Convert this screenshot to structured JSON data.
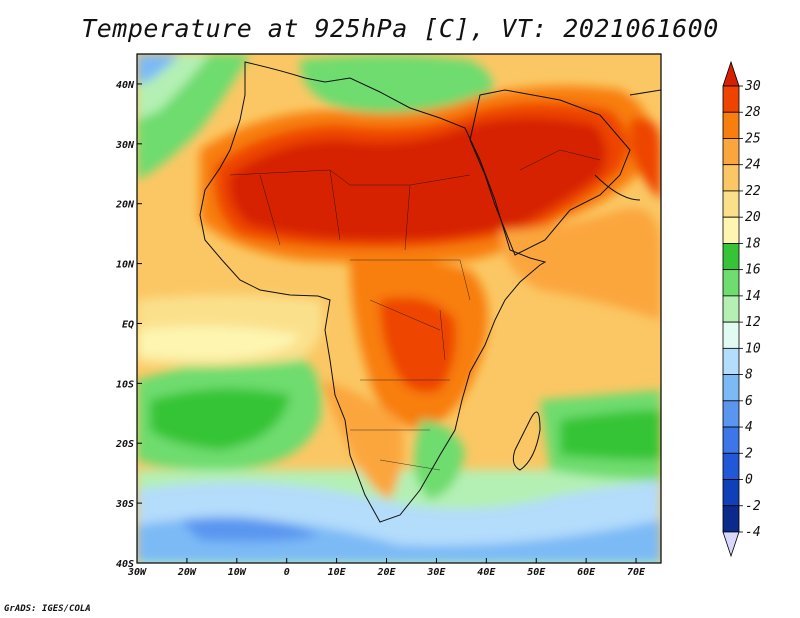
{
  "title": "Temperature at 925hPa [C], VT: 2021061600",
  "credit": "GrADS: IGES/COLA",
  "map": {
    "lon_labels": [
      "30W",
      "20W",
      "10W",
      "0",
      "10E",
      "20E",
      "30E",
      "40E",
      "50E",
      "60E",
      "70E"
    ],
    "lat_labels": [
      "40N",
      "30N",
      "20N",
      "10N",
      "EQ",
      "10S",
      "20S",
      "30S",
      "40S"
    ],
    "lon_range": [
      -30,
      75
    ],
    "lat_range": [
      -40,
      45
    ]
  },
  "colorbar": {
    "labels": [
      "30",
      "28",
      "25",
      "24",
      "22",
      "20",
      "18",
      "16",
      "14",
      "12",
      "10",
      "8",
      "6",
      "4",
      "2",
      "0",
      "-2",
      "-4"
    ],
    "colors": [
      "#d62000",
      "#ee4400",
      "#f87e10",
      "#fba63c",
      "#fbc764",
      "#fbe08c",
      "#fdf5b0",
      "#36c436",
      "#6edc6e",
      "#b4f0b4",
      "#e2fbf2",
      "#b4dcfb",
      "#7cbaf6",
      "#5a96f0",
      "#3c76e8",
      "#2058d8",
      "#1040b8",
      "#0c2a8c",
      "#081868"
    ]
  }
}
